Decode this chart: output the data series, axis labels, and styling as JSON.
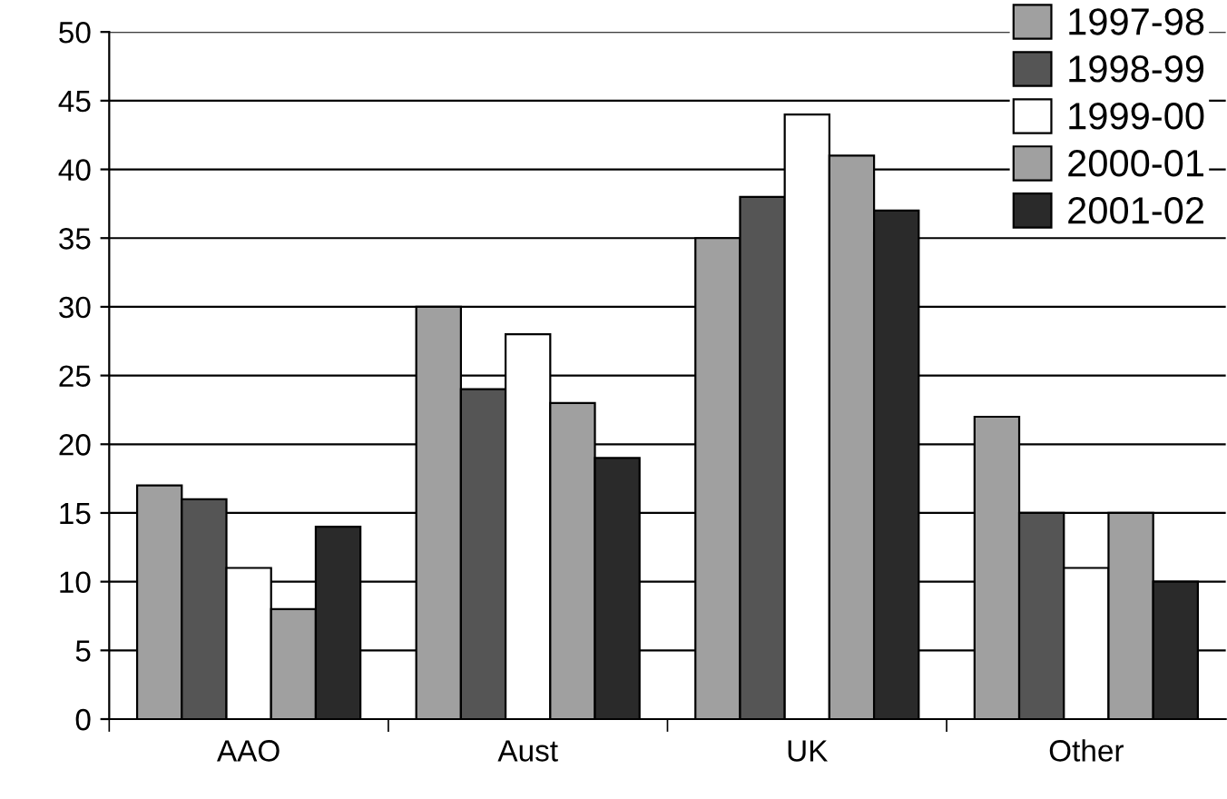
{
  "chart_data": {
    "type": "bar",
    "categories": [
      "AAO",
      "Aust",
      "UK",
      "Other"
    ],
    "series": [
      {
        "name": "1997-98",
        "color": "#a0a0a0",
        "values": [
          17,
          30,
          35,
          22
        ]
      },
      {
        "name": "1998-99",
        "color": "#555555",
        "values": [
          16,
          24,
          38,
          15
        ]
      },
      {
        "name": "1999-00",
        "color": "#ffffff",
        "values": [
          11,
          28,
          44,
          11
        ]
      },
      {
        "name": "2000-01",
        "color": "#a0a0a0",
        "values": [
          8,
          23,
          41,
          15
        ]
      },
      {
        "name": "2001-02",
        "color": "#2a2a2a",
        "values": [
          14,
          19,
          37,
          10
        ]
      }
    ],
    "ylim": [
      0,
      50
    ],
    "yticks": [
      0,
      5,
      10,
      15,
      20,
      25,
      30,
      35,
      40,
      45,
      50
    ],
    "grid": "y",
    "legend": "top right"
  }
}
